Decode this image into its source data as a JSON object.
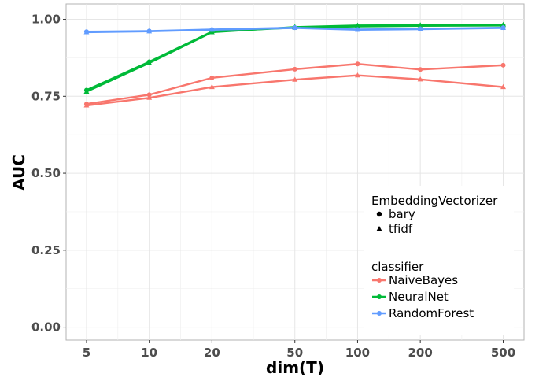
{
  "chart_data": {
    "type": "line",
    "x": [
      5,
      10,
      20,
      50,
      100,
      200,
      500
    ],
    "x_tick_labels": [
      "5",
      "10",
      "20",
      "50",
      "100",
      "200",
      "500"
    ],
    "x_scale": "log",
    "xlabel": "dim(T)",
    "ylabel": "AUC",
    "ylim": [
      0,
      1
    ],
    "y_ticks": [
      0,
      0.25,
      0.5,
      0.75,
      1.0
    ],
    "y_tick_labels": [
      "0.00",
      "0.25",
      "0.50",
      "0.75",
      "1.00"
    ],
    "grid": true,
    "legend_position": "right, inside plot",
    "legend": {
      "shape_title": "EmbeddingVectorizer",
      "shape_entries": [
        {
          "label": "bary",
          "shape": "circle"
        },
        {
          "label": "tfidf",
          "shape": "triangle"
        }
      ],
      "color_title": "classifier",
      "color_entries": [
        {
          "label": "NaiveBayes",
          "color": "#F8766D"
        },
        {
          "label": "NeuralNet",
          "color": "#00BA38"
        },
        {
          "label": "RandomForest",
          "color": "#619CFF"
        }
      ]
    },
    "series": [
      {
        "classifier": "NaiveBayes",
        "vectorizer": "bary",
        "color": "#F8766D",
        "shape": "circle",
        "values": [
          0.725,
          0.755,
          0.81,
          0.838,
          0.855,
          0.837,
          0.851
        ]
      },
      {
        "classifier": "NaiveBayes",
        "vectorizer": "tfidf",
        "color": "#F8766D",
        "shape": "triangle",
        "values": [
          0.72,
          0.745,
          0.78,
          0.804,
          0.818,
          0.805,
          0.78
        ]
      },
      {
        "classifier": "NeuralNet",
        "vectorizer": "bary",
        "color": "#00BA38",
        "shape": "circle",
        "values": [
          0.77,
          0.862,
          0.96,
          0.973,
          0.977,
          0.979,
          0.98
        ]
      },
      {
        "classifier": "NeuralNet",
        "vectorizer": "tfidf",
        "color": "#00BA38",
        "shape": "triangle",
        "values": [
          0.765,
          0.858,
          0.958,
          0.975,
          0.98,
          0.981,
          0.982
        ]
      },
      {
        "classifier": "RandomForest",
        "vectorizer": "bary",
        "color": "#619CFF",
        "shape": "circle",
        "values": [
          0.96,
          0.962,
          0.967,
          0.973,
          0.967,
          0.969,
          0.973
        ]
      },
      {
        "classifier": "RandomForest",
        "vectorizer": "tfidf",
        "color": "#619CFF",
        "shape": "triangle",
        "values": [
          0.958,
          0.961,
          0.966,
          0.972,
          0.966,
          0.968,
          0.972
        ]
      }
    ]
  }
}
